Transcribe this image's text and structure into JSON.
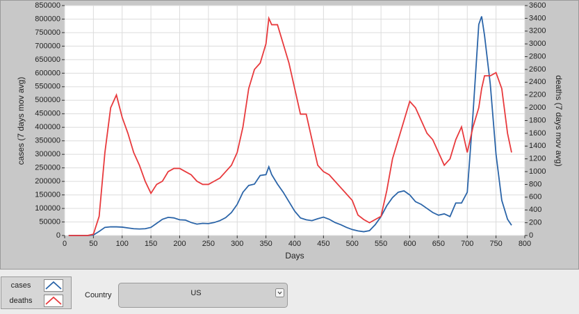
{
  "chart_data": {
    "type": "line",
    "xlabel": "Days",
    "ylabel": "cases  (7 days mov avg)",
    "y2label": "deaths  (7 days mov avg)",
    "x": [
      7,
      20,
      30,
      40,
      50,
      60,
      70,
      80,
      90,
      100,
      110,
      120,
      130,
      140,
      150,
      160,
      170,
      180,
      190,
      200,
      210,
      220,
      230,
      240,
      250,
      260,
      270,
      280,
      290,
      300,
      310,
      320,
      330,
      340,
      350,
      355,
      360,
      370,
      380,
      390,
      400,
      410,
      420,
      430,
      440,
      450,
      460,
      470,
      480,
      490,
      500,
      510,
      520,
      530,
      540,
      550,
      560,
      570,
      580,
      590,
      600,
      610,
      620,
      630,
      640,
      650,
      660,
      670,
      680,
      690,
      700,
      710,
      720,
      725,
      730,
      740,
      750,
      760,
      770,
      777
    ],
    "series": [
      {
        "name": "cases",
        "color": "#2a64a8",
        "axis": "y",
        "values": [
          0,
          0,
          0,
          0,
          2000,
          15000,
          30000,
          32000,
          32000,
          31000,
          28000,
          25000,
          24000,
          25000,
          30000,
          45000,
          60000,
          67000,
          65000,
          58000,
          57000,
          48000,
          42000,
          45000,
          44000,
          48000,
          55000,
          66000,
          85000,
          115000,
          160000,
          185000,
          190000,
          222000,
          225000,
          254000,
          225000,
          190000,
          160000,
          125000,
          90000,
          65000,
          58000,
          55000,
          62000,
          68000,
          60000,
          48000,
          40000,
          30000,
          22000,
          17000,
          14000,
          18000,
          40000,
          70000,
          110000,
          140000,
          160000,
          165000,
          150000,
          125000,
          115000,
          100000,
          85000,
          75000,
          80000,
          70000,
          120000,
          120000,
          160000,
          450000,
          780000,
          810000,
          740000,
          560000,
          300000,
          130000,
          60000,
          38000
        ]
      },
      {
        "name": "deaths",
        "color": "#e8393c",
        "axis": "y2",
        "values": [
          0,
          0,
          0,
          0,
          20,
          300,
          1300,
          2000,
          2200,
          1850,
          1600,
          1300,
          1100,
          850,
          660,
          800,
          850,
          1000,
          1050,
          1050,
          1000,
          950,
          850,
          800,
          800,
          850,
          900,
          1000,
          1100,
          1300,
          1700,
          2300,
          2600,
          2700,
          3000,
          3400,
          3300,
          3300,
          3000,
          2700,
          2300,
          1900,
          1900,
          1500,
          1100,
          1000,
          950,
          850,
          750,
          650,
          550,
          320,
          250,
          200,
          250,
          300,
          700,
          1200,
          1500,
          1800,
          2100,
          2000,
          1800,
          1600,
          1500,
          1300,
          1100,
          1200,
          1500,
          1700,
          1300,
          1700,
          2000,
          2300,
          2500,
          2500,
          2550,
          2300,
          1600,
          1300
        ]
      }
    ],
    "xlim": [
      0,
      800
    ],
    "xticks": [
      0,
      50,
      100,
      150,
      200,
      250,
      300,
      350,
      400,
      450,
      500,
      550,
      600,
      650,
      700,
      750,
      800
    ],
    "ylim": [
      0,
      850000
    ],
    "yticks": [
      0,
      50000,
      100000,
      150000,
      200000,
      250000,
      300000,
      350000,
      400000,
      450000,
      500000,
      550000,
      600000,
      650000,
      700000,
      750000,
      800000,
      850000
    ],
    "y2lim": [
      0,
      3600
    ],
    "y2ticks": [
      0,
      200,
      400,
      600,
      800,
      1000,
      1200,
      1400,
      1600,
      1800,
      2000,
      2200,
      2400,
      2600,
      2800,
      3000,
      3200,
      3400,
      3600
    ],
    "grid": true
  },
  "controls": {
    "country_label": "Country",
    "country_value": "US"
  }
}
